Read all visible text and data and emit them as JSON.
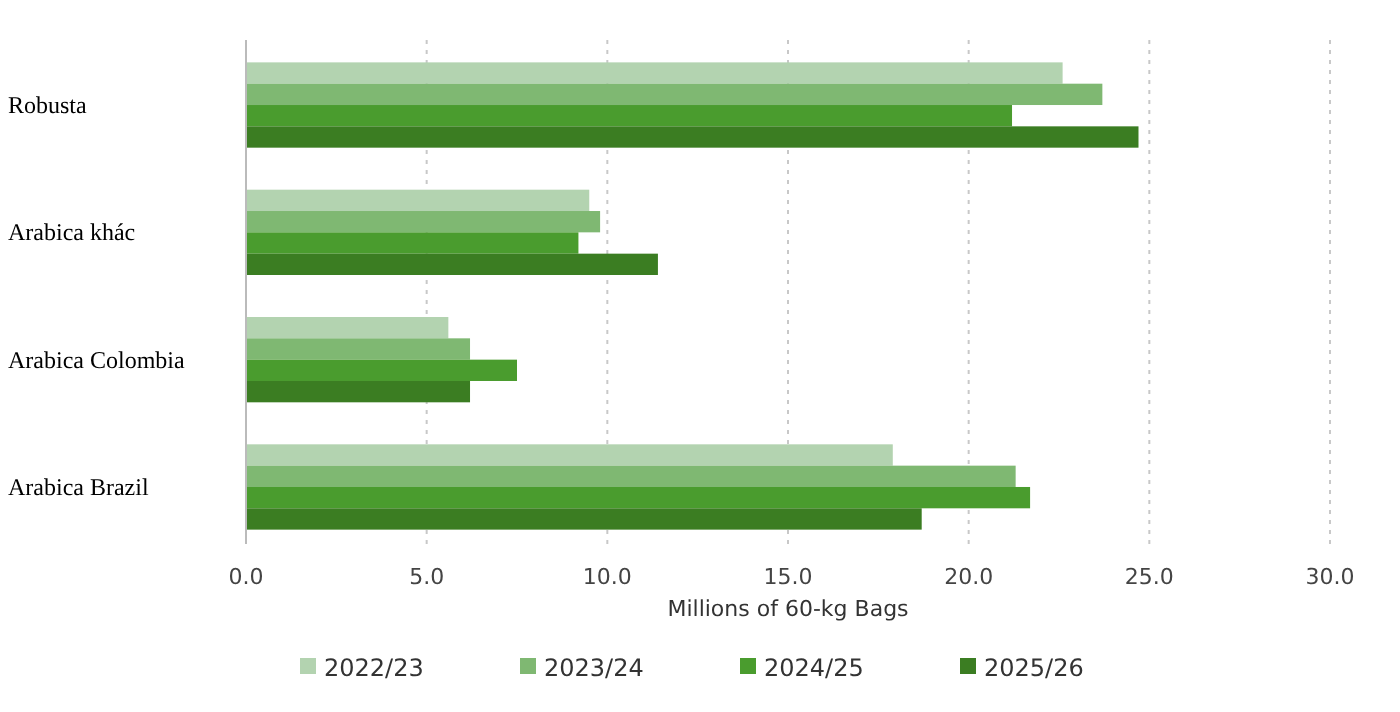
{
  "chart_data": {
    "type": "bar",
    "orientation": "horizontal",
    "categories": [
      "Robusta",
      "Arabica khác",
      "Arabica Colombia",
      "Arabica Brazil"
    ],
    "series": [
      {
        "name": "2022/23",
        "color": "#b3d3b0",
        "values": [
          22.6,
          9.5,
          5.6,
          17.9
        ]
      },
      {
        "name": "2023/24",
        "color": "#7fb872",
        "values": [
          23.7,
          9.8,
          6.2,
          21.3
        ]
      },
      {
        "name": "2024/25",
        "color": "#4a9c2e",
        "values": [
          21.2,
          9.2,
          7.5,
          21.7
        ]
      },
      {
        "name": "2025/26",
        "color": "#3b7d22",
        "values": [
          24.7,
          11.4,
          6.2,
          18.7
        ]
      }
    ],
    "xlim": [
      0,
      30
    ],
    "xticks": [
      {
        "value": 0,
        "label": "0.0"
      },
      {
        "value": 5,
        "label": "5.0"
      },
      {
        "value": 10,
        "label": "10.0"
      },
      {
        "value": 15,
        "label": "15.0"
      },
      {
        "value": 20,
        "label": "20.0"
      },
      {
        "value": 25,
        "label": "25.0"
      },
      {
        "value": 30,
        "label": "30.0"
      }
    ],
    "xlabel": "Millions of 60-kg Bags",
    "grid": "x",
    "legend": "bottom"
  }
}
